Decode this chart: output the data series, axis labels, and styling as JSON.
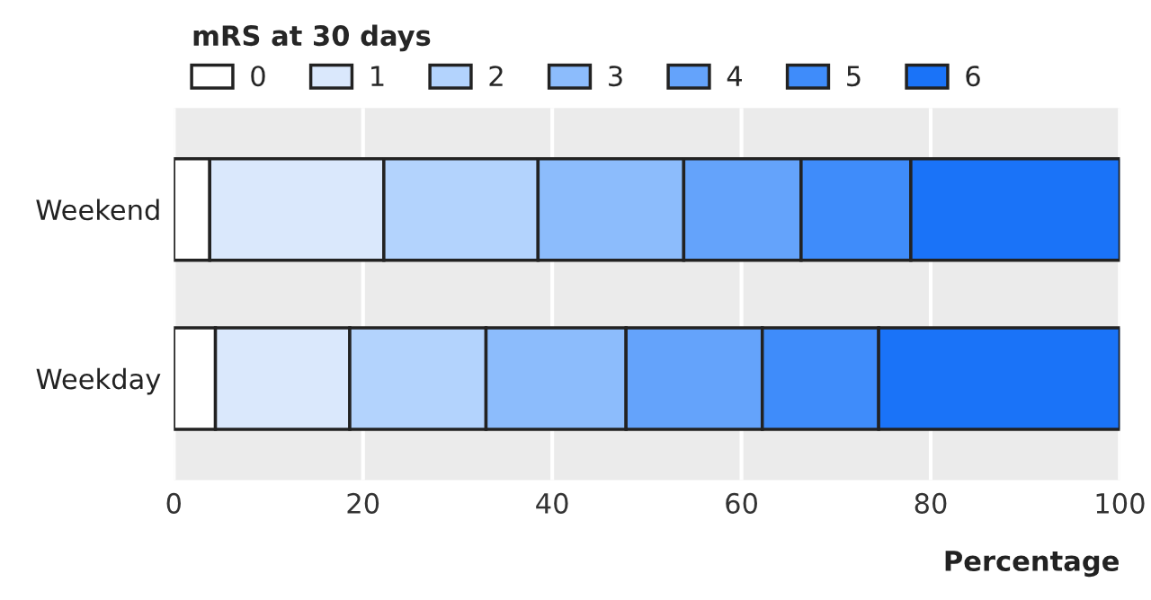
{
  "chart_data": {
    "type": "bar",
    "orientation": "horizontal",
    "stacked": true,
    "categories": [
      "Weekend",
      "Weekday"
    ],
    "series": [
      {
        "name": "0",
        "color": "#ffffff",
        "values": [
          3.8,
          4.4
        ]
      },
      {
        "name": "1",
        "color": "#dae8fc",
        "values": [
          18.4,
          14.2
        ]
      },
      {
        "name": "2",
        "color": "#b3d3fd",
        "values": [
          16.3,
          14.4
        ]
      },
      {
        "name": "3",
        "color": "#8cbcfc",
        "values": [
          15.4,
          14.8
        ]
      },
      {
        "name": "4",
        "color": "#64a3fb",
        "values": [
          12.4,
          14.4
        ]
      },
      {
        "name": "5",
        "color": "#3f8cfa",
        "values": [
          11.6,
          12.3
        ]
      },
      {
        "name": "6",
        "color": "#1a73f8",
        "values": [
          22.1,
          25.5
        ]
      }
    ],
    "xlabel": "Percentage",
    "legend_title": "mRS at 30 days",
    "legend": "top left",
    "xlim": [
      0,
      100
    ],
    "xticks": [
      0,
      20,
      40,
      60,
      80,
      100
    ],
    "grid": "x"
  }
}
